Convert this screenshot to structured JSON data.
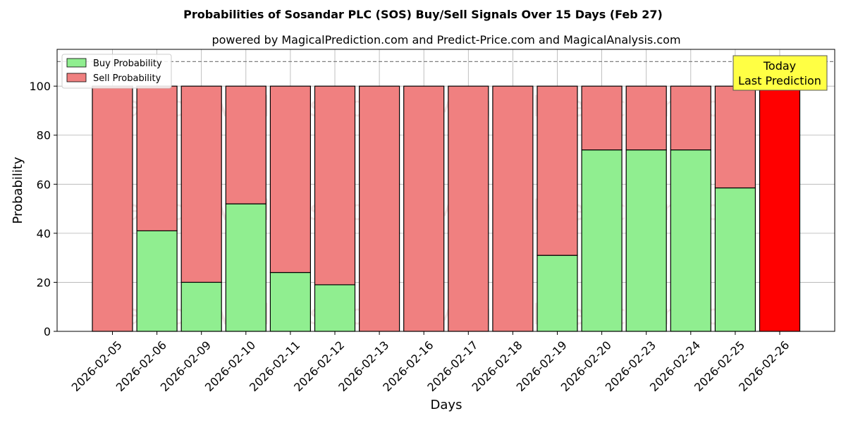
{
  "colors": {
    "buy": "#90ee90",
    "sell": "#f08080",
    "today": "#ff0000",
    "today_box": "#ffff44",
    "grid": "#b0b0b0"
  },
  "chart_data": {
    "type": "bar",
    "stacked": true,
    "title": "Probabilities of Sosandar PLC (SOS) Buy/Sell Signals Over 15 Days (Feb 27)",
    "subtitle": "powered by MagicalPrediction.com and Predict-Price.com and MagicalAnalysis.com",
    "xlabel": "Days",
    "ylabel": "Probability",
    "ylim": [
      0,
      115
    ],
    "yticks": [
      0,
      20,
      40,
      60,
      80,
      100
    ],
    "reference_line": 110,
    "grid": true,
    "legend_position": "top-left",
    "categories": [
      "2026-02-05",
      "2026-02-06",
      "2026-02-09",
      "2026-02-10",
      "2026-02-11",
      "2026-02-12",
      "2026-02-13",
      "2026-02-16",
      "2026-02-17",
      "2026-02-18",
      "2026-02-19",
      "2026-02-20",
      "2026-02-23",
      "2026-02-24",
      "2026-02-25",
      "2026-02-26"
    ],
    "series": [
      {
        "name": "Buy Probability",
        "values": [
          0,
          41,
          20,
          52,
          24,
          19,
          0,
          0,
          0,
          0,
          31,
          74,
          74,
          74,
          58.5,
          0
        ]
      },
      {
        "name": "Sell Probability",
        "values": [
          100,
          59,
          80,
          48,
          76,
          81,
          100,
          100,
          100,
          100,
          69,
          26,
          26,
          26,
          41.5,
          100
        ]
      }
    ],
    "highlight": {
      "index": 15,
      "label_line1": "Today",
      "label_line2": "Last Prediction"
    },
    "watermarks": [
      "MagicalAnalysis.com",
      "MagicalPrediction.com"
    ]
  }
}
